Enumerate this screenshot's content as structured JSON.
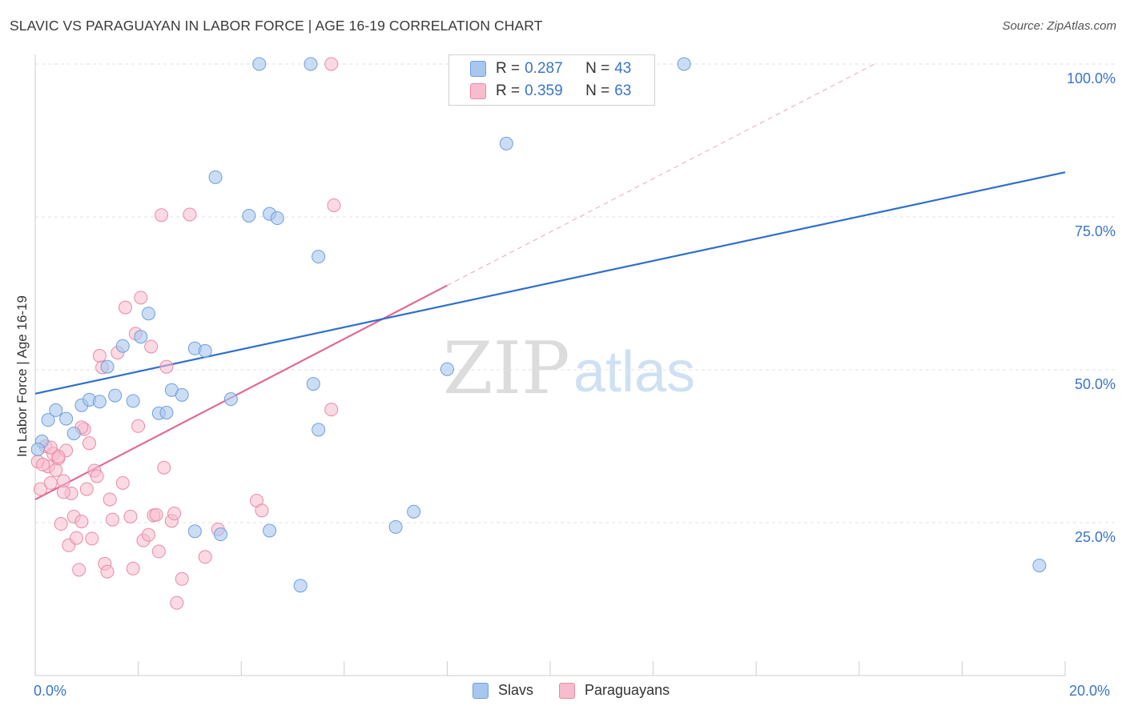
{
  "title": "SLAVIC VS PARAGUAYAN IN LABOR FORCE | AGE 16-19 CORRELATION CHART",
  "source": "Source: ZipAtlas.com",
  "watermark": {
    "zip": "ZIP",
    "atlas": "atlas"
  },
  "legend": {
    "r_label": "R =",
    "n_label": "N =",
    "rows": [
      {
        "r": "0.287",
        "n": "43"
      },
      {
        "r": "0.359",
        "n": "63"
      }
    ]
  },
  "bottom_legend": [
    "Slavs",
    "Paraguayans"
  ],
  "colors": {
    "slavs_fill": "#a9c6ef",
    "slavs_stroke": "#6f9fd8",
    "slavs_line": "#2f6fcb",
    "paraguayans_fill": "#f7bccd",
    "paraguayans_stroke": "#e88aa6",
    "paraguayans_line": "#e06a94",
    "tick_label": "#3a74c8"
  },
  "chart_data": {
    "type": "scatter",
    "title": "SLAVIC VS PARAGUAYAN IN LABOR FORCE | AGE 16-19 CORRELATION CHART",
    "xlabel": "",
    "ylabel": "In Labor Force | Age 16-19",
    "xlim": [
      0,
      20
    ],
    "ylim": [
      0,
      100
    ],
    "x_tick_labels": [
      "0.0%",
      "20.0%"
    ],
    "y_ticks": [
      25,
      50,
      75,
      100
    ],
    "y_tick_labels": [
      "25.0%",
      "50.0%",
      "75.0%",
      "100.0%"
    ],
    "grid": true,
    "legend_position": "top-center",
    "series": [
      {
        "name": "Slavs",
        "R": 0.287,
        "N": 43,
        "points": [
          [
            0.13,
            38.3
          ],
          [
            0.25,
            41.8
          ],
          [
            0.4,
            43.4
          ],
          [
            0.6,
            42.0
          ],
          [
            0.75,
            39.6
          ],
          [
            0.9,
            44.2
          ],
          [
            1.05,
            45.1
          ],
          [
            1.25,
            44.8
          ],
          [
            1.4,
            50.5
          ],
          [
            1.55,
            45.8
          ],
          [
            1.7,
            53.9
          ],
          [
            1.9,
            44.9
          ],
          [
            2.05,
            55.4
          ],
          [
            2.2,
            59.2
          ],
          [
            2.4,
            42.9
          ],
          [
            2.55,
            43.0
          ],
          [
            2.65,
            46.7
          ],
          [
            2.85,
            45.9
          ],
          [
            3.1,
            53.5
          ],
          [
            3.3,
            53.1
          ],
          [
            3.5,
            81.5
          ],
          [
            3.8,
            45.2
          ],
          [
            4.15,
            75.2
          ],
          [
            4.55,
            75.5
          ],
          [
            4.7,
            74.8
          ],
          [
            5.5,
            68.5
          ],
          [
            5.4,
            47.7
          ],
          [
            5.5,
            40.2
          ],
          [
            4.35,
            100.0
          ],
          [
            5.35,
            100.0
          ],
          [
            3.1,
            23.6
          ],
          [
            3.6,
            23.1
          ],
          [
            4.55,
            23.7
          ],
          [
            5.15,
            14.7
          ],
          [
            7.0,
            24.3
          ],
          [
            7.35,
            26.8
          ],
          [
            9.15,
            87.0
          ],
          [
            8.0,
            50.1
          ],
          [
            9.0,
            100.0
          ],
          [
            10.0,
            100.0
          ],
          [
            12.6,
            100.0
          ],
          [
            19.5,
            18.0
          ],
          [
            0.05,
            37.0
          ]
        ],
        "trend": {
          "x": [
            0,
            20
          ],
          "y": [
            46.1,
            82.3
          ]
        }
      },
      {
        "name": "Paraguayans",
        "R": 0.359,
        "N": 63,
        "points": [
          [
            0.05,
            35.0
          ],
          [
            0.1,
            30.5
          ],
          [
            0.2,
            37.5
          ],
          [
            0.25,
            34.2
          ],
          [
            0.3,
            31.5
          ],
          [
            0.35,
            36.3
          ],
          [
            0.4,
            33.6
          ],
          [
            0.45,
            35.5
          ],
          [
            0.5,
            24.8
          ],
          [
            0.55,
            31.8
          ],
          [
            0.6,
            36.8
          ],
          [
            0.65,
            21.3
          ],
          [
            0.7,
            29.8
          ],
          [
            0.75,
            26.0
          ],
          [
            0.8,
            22.5
          ],
          [
            0.85,
            17.3
          ],
          [
            0.9,
            25.2
          ],
          [
            0.95,
            40.3
          ],
          [
            1.0,
            30.5
          ],
          [
            1.05,
            38.0
          ],
          [
            1.1,
            22.4
          ],
          [
            1.15,
            33.5
          ],
          [
            1.2,
            32.6
          ],
          [
            1.25,
            52.3
          ],
          [
            1.3,
            50.4
          ],
          [
            1.35,
            18.3
          ],
          [
            1.4,
            17.0
          ],
          [
            1.5,
            25.5
          ],
          [
            1.6,
            52.8
          ],
          [
            1.7,
            31.5
          ],
          [
            1.75,
            60.2
          ],
          [
            1.85,
            26.0
          ],
          [
            1.9,
            17.5
          ],
          [
            1.95,
            55.9
          ],
          [
            2.0,
            40.8
          ],
          [
            2.05,
            61.8
          ],
          [
            2.1,
            22.1
          ],
          [
            2.2,
            23.0
          ],
          [
            2.25,
            53.8
          ],
          [
            2.3,
            26.2
          ],
          [
            2.4,
            20.3
          ],
          [
            2.45,
            75.3
          ],
          [
            2.5,
            34.0
          ],
          [
            2.55,
            50.5
          ],
          [
            2.65,
            25.3
          ],
          [
            2.7,
            26.5
          ],
          [
            2.75,
            11.9
          ],
          [
            2.85,
            15.8
          ],
          [
            3.0,
            75.4
          ],
          [
            3.3,
            19.4
          ],
          [
            3.55,
            23.9
          ],
          [
            4.3,
            28.6
          ],
          [
            4.4,
            27.0
          ],
          [
            5.8,
            76.9
          ],
          [
            5.75,
            43.5
          ],
          [
            5.75,
            100.0
          ],
          [
            2.35,
            26.3
          ],
          [
            0.15,
            34.5
          ],
          [
            0.3,
            37.3
          ],
          [
            0.45,
            35.8
          ],
          [
            0.55,
            30.0
          ],
          [
            1.45,
            28.8
          ],
          [
            0.9,
            40.6
          ]
        ],
        "trend": {
          "x": [
            0,
            8.0
          ],
          "y": [
            28.8,
            63.8
          ]
        },
        "trend_extension": {
          "x": [
            8.0,
            16.3
          ],
          "y": [
            63.8,
            100.0
          ]
        }
      }
    ]
  }
}
